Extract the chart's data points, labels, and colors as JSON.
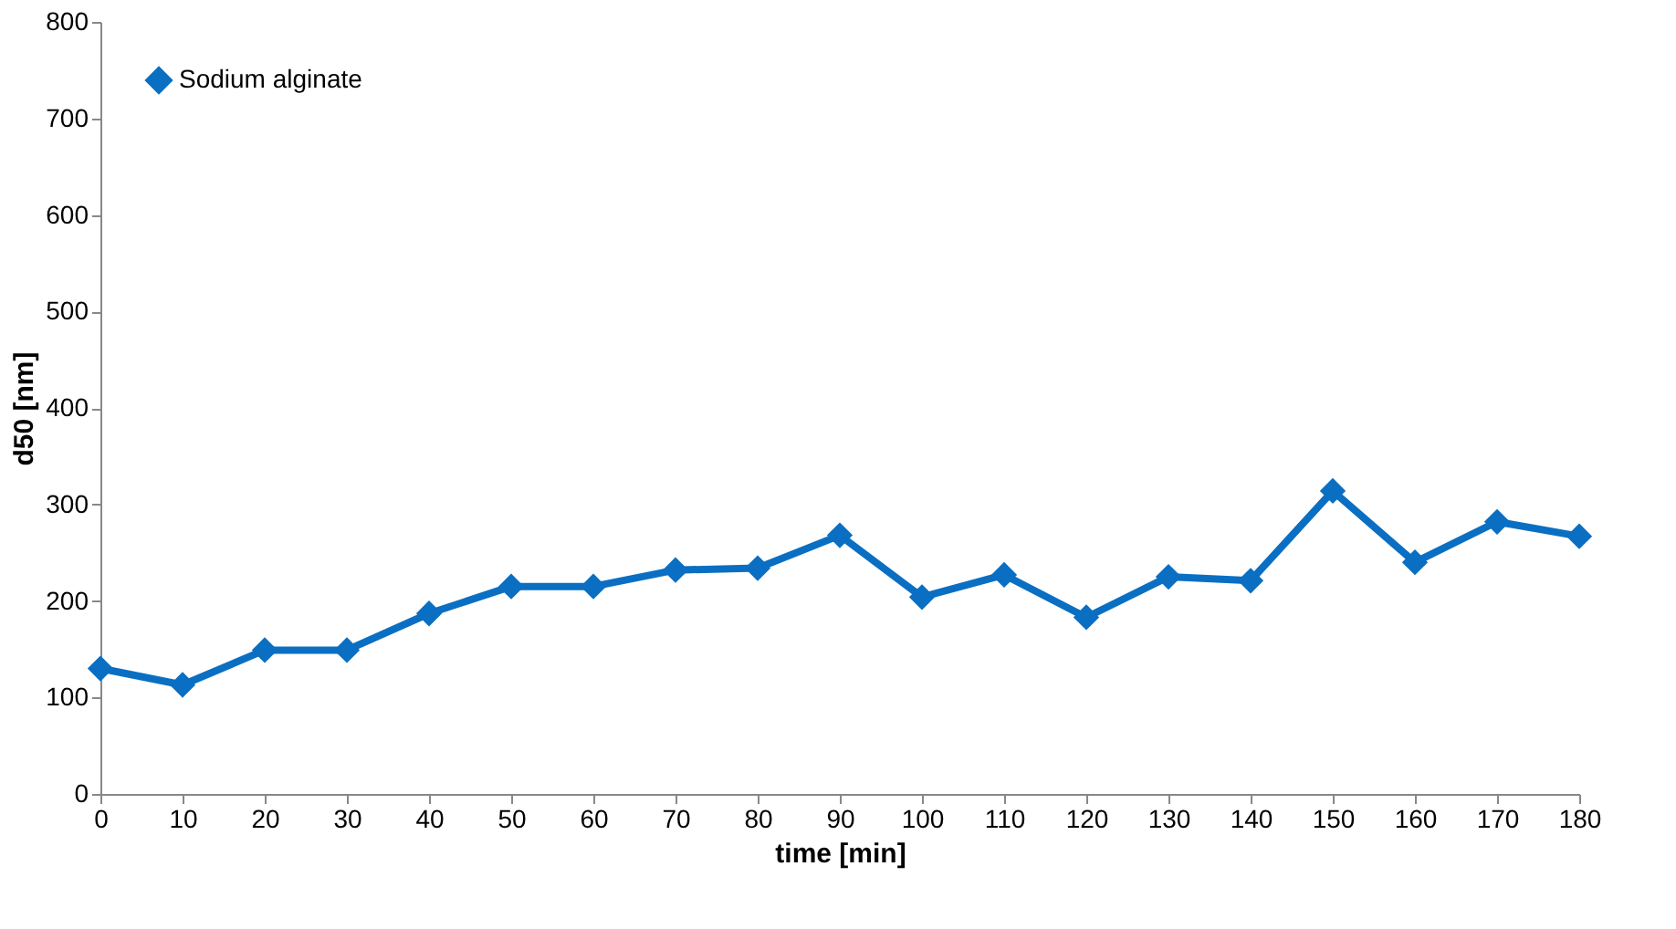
{
  "chart_data": {
    "type": "line",
    "xlabel": "time [min]",
    "ylabel": "d50 [nm]",
    "x": [
      0,
      10,
      20,
      30,
      40,
      50,
      60,
      70,
      80,
      90,
      100,
      110,
      120,
      130,
      140,
      150,
      160,
      170,
      180
    ],
    "series": [
      {
        "name": "Sodium alginate",
        "color": "#0a6fc2",
        "values": [
          130,
          113,
          149,
          149,
          187,
          215,
          215,
          232,
          234,
          268,
          204,
          227,
          183,
          225,
          221,
          314,
          240,
          282,
          267
        ]
      }
    ],
    "xlim": [
      0,
      180
    ],
    "xticks": [
      0,
      10,
      20,
      30,
      40,
      50,
      60,
      70,
      80,
      90,
      100,
      110,
      120,
      130,
      140,
      150,
      160,
      170,
      180
    ],
    "ylim": [
      0,
      800
    ],
    "yticks": [
      0,
      100,
      200,
      300,
      400,
      500,
      600,
      700,
      800
    ],
    "grid": false,
    "legend": "top left",
    "marker": "diamond",
    "line_style": "solid"
  }
}
